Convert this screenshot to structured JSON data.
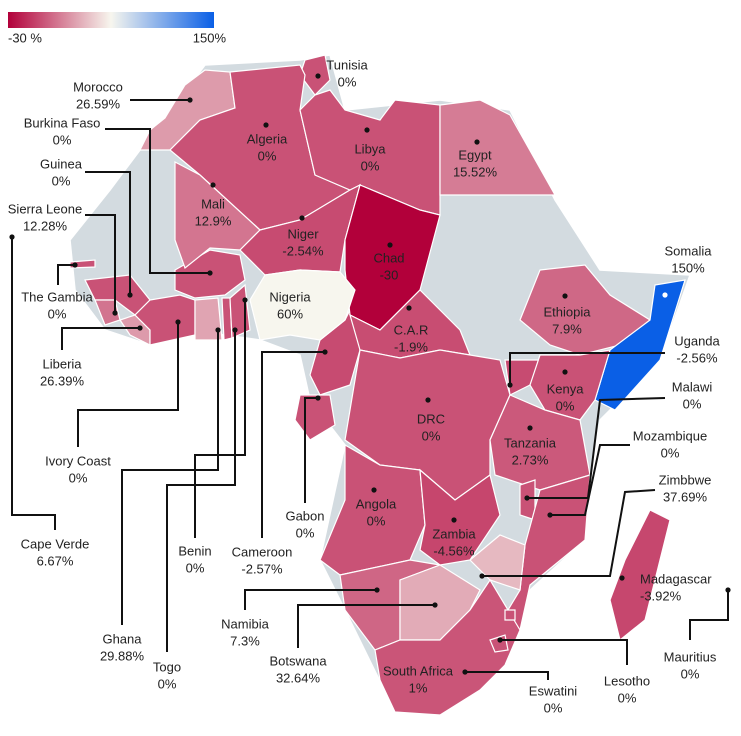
{
  "map": {
    "legend": {
      "colors": [
        "#b2003a",
        "#f7f6ee",
        "#0a5fe6"
      ],
      "min": -30,
      "max": 150,
      "min_label": "-30 %",
      "max_label": "150%"
    },
    "countries": [
      {
        "name": "Tunisia",
        "value": 0,
        "value_label": "0%"
      },
      {
        "name": "Morocco",
        "value": 26.59,
        "value_label": "26.59%"
      },
      {
        "name": "Burkina Faso",
        "value": 0,
        "value_label": "0%"
      },
      {
        "name": "Guinea",
        "value": 0,
        "value_label": "0%"
      },
      {
        "name": "Sierra Leone",
        "value": 12.28,
        "value_label": "12.28%"
      },
      {
        "name": "The Gambia",
        "value": 0,
        "value_label": "0%"
      },
      {
        "name": "Liberia",
        "value": 26.39,
        "value_label": "26.39%"
      },
      {
        "name": "Ivory Coast",
        "value": 0,
        "value_label": "0%"
      },
      {
        "name": "Ghana",
        "value": 29.88,
        "value_label": "29.88%"
      },
      {
        "name": "Togo",
        "value": 0,
        "value_label": "0%"
      },
      {
        "name": "Benin",
        "value": 0,
        "value_label": "0%"
      },
      {
        "name": "Cameroon",
        "value": -2.57,
        "value_label": "-2.57%"
      },
      {
        "name": "Gabon",
        "value": 0,
        "value_label": "0%"
      },
      {
        "name": "Cape Verde",
        "value": 6.67,
        "value_label": "6.67%"
      },
      {
        "name": "Algeria",
        "value": 0,
        "value_label": "0%"
      },
      {
        "name": "Libya",
        "value": 0,
        "value_label": "0%"
      },
      {
        "name": "Egypt",
        "value": 15.52,
        "value_label": "15.52%"
      },
      {
        "name": "Mali",
        "value": 12.9,
        "value_label": "12.9%"
      },
      {
        "name": "Niger",
        "value": -2.54,
        "value_label": "-2.54%"
      },
      {
        "name": "Chad",
        "value": -30,
        "value_label": "-30"
      },
      {
        "name": "Nigeria",
        "value": 60,
        "value_label": "60%"
      },
      {
        "name": "C.A.R",
        "value": -1.9,
        "value_label": "-1.9%"
      },
      {
        "name": "Ethiopia",
        "value": 7.9,
        "value_label": "7.9%"
      },
      {
        "name": "Somalia",
        "value": 150,
        "value_label": "150%"
      },
      {
        "name": "Uganda",
        "value": -2.56,
        "value_label": "-2.56%"
      },
      {
        "name": "Kenya",
        "value": 0,
        "value_label": "0%"
      },
      {
        "name": "DRC",
        "value": 0,
        "value_label": "0%"
      },
      {
        "name": "Tanzania",
        "value": 2.73,
        "value_label": "2.73%"
      },
      {
        "name": "Malawi",
        "value": 0,
        "value_label": "0%"
      },
      {
        "name": "Mozambique",
        "value": 0,
        "value_label": "0%"
      },
      {
        "name": "Zimbbwe",
        "value": 37.69,
        "value_label": "37.69%"
      },
      {
        "name": "Angola",
        "value": 0,
        "value_label": "0%"
      },
      {
        "name": "Zambia",
        "value": -4.56,
        "value_label": "-4.56%"
      },
      {
        "name": "Madagascar",
        "value": -3.92,
        "value_label": "-3.92%"
      },
      {
        "name": "Namibia",
        "value": 7.3,
        "value_label": "7.3%"
      },
      {
        "name": "Botswana",
        "value": 32.64,
        "value_label": "32.64%"
      },
      {
        "name": "South Africa",
        "value": 1,
        "value_label": "1%"
      },
      {
        "name": "Eswatini",
        "value": 0,
        "value_label": "0%"
      },
      {
        "name": "Lesotho",
        "value": 0,
        "value_label": "0%"
      },
      {
        "name": "Mauritius",
        "value": 0,
        "value_label": "0%"
      }
    ]
  }
}
